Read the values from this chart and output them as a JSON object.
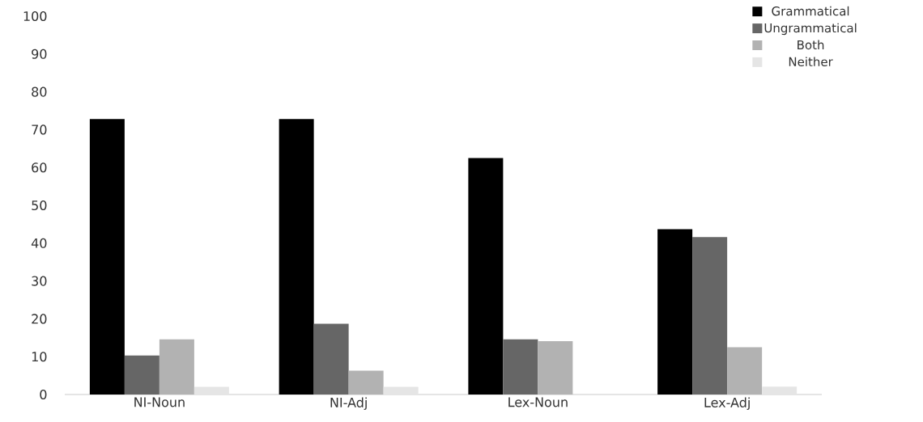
{
  "chart_data": {
    "type": "bar",
    "categories": [
      "NI-Noun",
      "NI-Adj",
      "Lex-Noun",
      "Lex-Adj"
    ],
    "series": [
      {
        "name": "Grammatical",
        "color": "#000000",
        "values": [
          72.8,
          72.8,
          62.5,
          43.7
        ]
      },
      {
        "name": "Ungrammatical",
        "color": "#666666",
        "values": [
          10.3,
          18.7,
          14.6,
          41.6
        ]
      },
      {
        "name": "Both",
        "color": "#b2b2b2",
        "values": [
          14.6,
          6.3,
          14.1,
          12.5
        ]
      },
      {
        "name": "Neither",
        "color": "#e5e5e5",
        "values": [
          2.0,
          2.0,
          0,
          2.1
        ]
      }
    ],
    "ylim": [
      0,
      100
    ],
    "yticks": [
      0,
      10,
      20,
      30,
      40,
      50,
      60,
      70,
      80,
      90,
      100
    ],
    "grid": false,
    "legend": "top right"
  }
}
